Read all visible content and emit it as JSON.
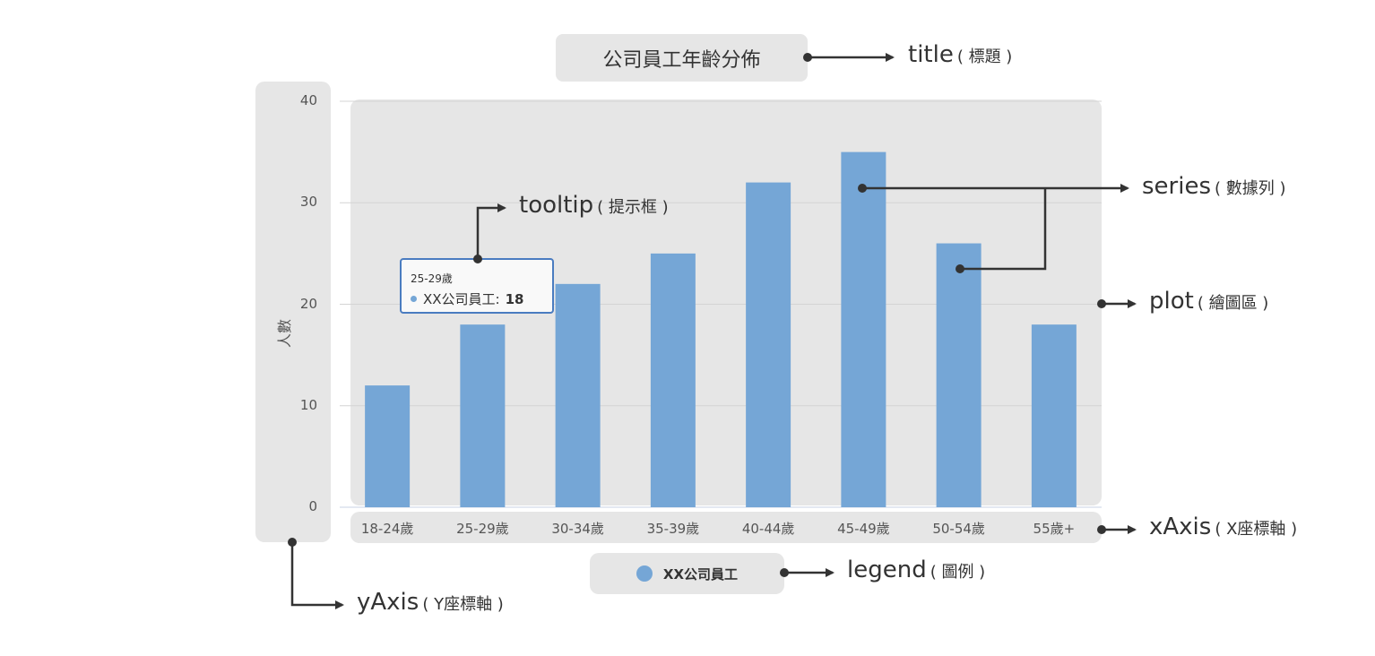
{
  "chart_data": {
    "type": "bar",
    "title": "公司員工年齡分佈",
    "ylabel": "人數",
    "xlabel": "",
    "categories": [
      "18-24歲",
      "25-29歲",
      "30-34歲",
      "35-39歲",
      "40-44歲",
      "45-49歲",
      "50-54歲",
      "55歲+"
    ],
    "series": [
      {
        "name": "XX公司員工",
        "values": [
          12,
          18,
          22,
          25,
          32,
          35,
          26,
          18
        ]
      }
    ],
    "ylim": [
      0,
      40
    ],
    "yticks": [
      "0",
      "10",
      "20",
      "30",
      "40"
    ],
    "grid": true,
    "legend_position": "bottom-center"
  },
  "colors": {
    "bar": "#75a6d6",
    "panel": "#e6e6e6",
    "arrow": "#333333",
    "tooltip_border": "#4a7cc0",
    "grid": "#d4d4d4"
  },
  "tooltip": {
    "header": "25-29歲",
    "series_label": "XX公司員工:",
    "value": "18"
  },
  "legend": {
    "label": "XX公司員工"
  },
  "annotations": {
    "title": {
      "main": "title",
      "sub": "( 標題 )"
    },
    "series": {
      "main": "series",
      "sub": "( 數據列 )"
    },
    "tooltip": {
      "main": "tooltip",
      "sub": "( 提示框 )"
    },
    "plot": {
      "main": "plot",
      "sub": "( 繪圖區 )"
    },
    "xaxis": {
      "main": "xAxis",
      "sub": "( X座標軸 )"
    },
    "legend": {
      "main": "legend",
      "sub": "( 圖例 )"
    },
    "yaxis": {
      "main": "yAxis",
      "sub": "( Y座標軸 )"
    }
  }
}
